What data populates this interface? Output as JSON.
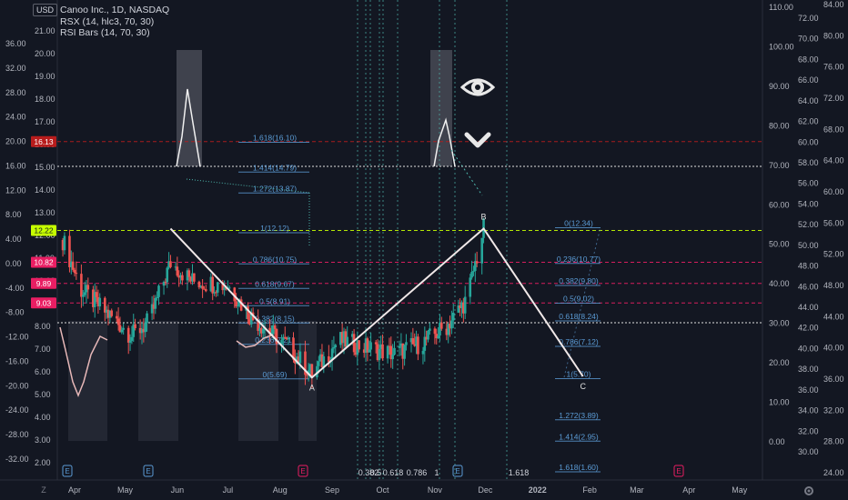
{
  "header": {
    "currency": "USD",
    "title": "Canoo Inc., 1D, NASDAQ",
    "indicators": [
      "RSX (14, hlc3, 70, 30)",
      "RSI Bars (14, 70, 30)"
    ]
  },
  "colors": {
    "background": "#131722",
    "up": "#26a69a",
    "down": "#ef5350",
    "fib_line": "#5b9bd5",
    "wave": "#f0e8e8",
    "rsx_line": "#e7b8b8",
    "badge_red": "#b71c1c",
    "badge_magenta": "#e91e63",
    "badge_green": "#c6ff00"
  },
  "chart_data": {
    "type": "candlestick",
    "symbol": "Canoo Inc.",
    "interval": "1D",
    "exchange": "NASDAQ",
    "x_labels": [
      "Apr",
      "May",
      "Jun",
      "Jul",
      "Aug",
      "Sep",
      "Oct",
      "Nov",
      "Dec",
      "2022",
      "Feb",
      "Mar",
      "Apr",
      "May"
    ],
    "price_axis_left": [
      "21.00",
      "20.00",
      "19.00",
      "18.00",
      "17.00",
      "16.00",
      "15.00",
      "14.00",
      "13.00",
      "12.00",
      "11.00",
      "10.00",
      "9.00",
      "8.00",
      "7.00",
      "6.00",
      "5.00",
      "4.00",
      "3.00",
      "2.00"
    ],
    "price_axis_left2": [
      "36.00",
      "32.00",
      "28.00",
      "24.00",
      "20.00",
      "16.00",
      "12.00",
      "8.00",
      "4.00",
      "0.00",
      "-4.00",
      "-8.00",
      "-12.00",
      "-16.00",
      "-20.00",
      "-24.00",
      "-28.00",
      "-32.00"
    ],
    "rsx_axis": [
      "110.00",
      "100.00",
      "90.00",
      "80.00",
      "70.00",
      "60.00",
      "50.00",
      "40.00",
      "30.00",
      "20.00",
      "10.00",
      "0.00"
    ],
    "right_axis_1": [
      "72.00",
      "70.00",
      "68.00",
      "66.00",
      "64.00",
      "62.00",
      "60.00",
      "58.00",
      "56.00",
      "54.00",
      "52.00",
      "50.00",
      "48.00",
      "46.00",
      "44.00",
      "42.00",
      "40.00",
      "38.00",
      "36.00",
      "34.00",
      "32.00",
      "30.00"
    ],
    "right_axis_2": [
      "84.00",
      "80.00",
      "76.00",
      "72.00",
      "68.00",
      "64.00",
      "60.00",
      "56.00",
      "52.00",
      "48.00",
      "44.00",
      "40.00",
      "36.00",
      "32.00",
      "28.00",
      "24.00"
    ],
    "price_badges": [
      {
        "label": "16.13",
        "value": 16.13,
        "color": "#b71c1c"
      },
      {
        "label": "12.22",
        "value": 12.22,
        "color": "#c6ff00"
      },
      {
        "label": "10.82",
        "value": 10.82,
        "color": "#e91e63"
      },
      {
        "label": "9.89",
        "value": 9.89,
        "color": "#e91e63"
      },
      {
        "label": "9.03",
        "value": 9.03,
        "color": "#e91e63"
      }
    ],
    "fib_extension_labels": [
      {
        "label": "1.618(16.10)",
        "value": 16.1
      },
      {
        "label": "1.414(14.79)",
        "value": 14.79
      },
      {
        "label": "1.272(13.87)",
        "value": 13.87
      },
      {
        "label": "1(12.12)",
        "value": 12.12
      },
      {
        "label": "0.786(10.75)",
        "value": 10.75
      },
      {
        "label": "0.618(9.67)",
        "value": 9.67
      },
      {
        "label": "0.5(8.91)",
        "value": 8.91
      },
      {
        "label": "0.382(8.15)",
        "value": 8.15
      },
      {
        "label": "0.236(7.21)",
        "value": 7.21
      },
      {
        "label": "0(5.69)",
        "value": 5.69
      }
    ],
    "fib_retracement_labels": [
      {
        "label": "0(12.34)",
        "value": 12.34
      },
      {
        "label": "0.236(10.77)",
        "value": 10.77
      },
      {
        "label": "0.382(9.80)",
        "value": 9.8
      },
      {
        "label": "0.5(9.02)",
        "value": 9.02
      },
      {
        "label": "0.618(8.24)",
        "value": 8.24
      },
      {
        "label": "0.786(7.12)",
        "value": 7.12
      },
      {
        "label": "1(5.70)",
        "value": 5.7
      },
      {
        "label": "1.272(3.89)",
        "value": 3.89
      },
      {
        "label": "1.414(2.95)",
        "value": 2.95
      },
      {
        "label": "1.618(1.60)",
        "value": 1.6
      }
    ],
    "time_fib_labels": [
      "0.382",
      "0.5",
      "0.618",
      "0.786",
      "1",
      "1.618"
    ],
    "wave_points": [
      {
        "label": "",
        "date": "2021-05-28",
        "value": 12.3
      },
      {
        "label": "A",
        "date": "2021-08-20",
        "value": 5.75
      },
      {
        "label": "B",
        "date": "2021-11-30",
        "value": 12.3
      },
      {
        "label": "C",
        "date": "2022-01-28",
        "value": 5.8
      }
    ],
    "event_markers": [
      {
        "label": "E",
        "month": "Apr"
      },
      {
        "label": "E",
        "month": "May"
      },
      {
        "label": "E",
        "month": "Aug"
      },
      {
        "label": "E",
        "month": "Nov"
      },
      {
        "label": "E",
        "month": "Feb"
      }
    ]
  }
}
